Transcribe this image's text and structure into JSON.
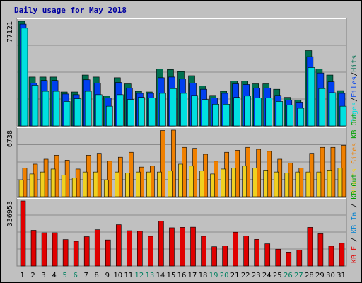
{
  "chart_data": {
    "type": "bar",
    "title": "Daily usage for May 2018",
    "x": [
      "1",
      "2",
      "3",
      "4",
      "5",
      "6",
      "7",
      "8",
      "9",
      "10",
      "11",
      "12",
      "13",
      "14",
      "15",
      "16",
      "17",
      "18",
      "19",
      "20",
      "21",
      "22",
      "23",
      "24",
      "25",
      "26",
      "27",
      "28",
      "29",
      "30",
      "31"
    ],
    "weekend_days": [
      "5",
      "6",
      "12",
      "13",
      "19",
      "20",
      "26",
      "27"
    ],
    "panels": [
      {
        "id": "hits",
        "max_label": "77121",
        "ymax": 77121,
        "legend": [
          "Pages",
          "/",
          "Files",
          "/",
          "Hits"
        ],
        "legend_colors": [
          "#00e0e0",
          "#000000",
          "#0040f0",
          "#000000",
          "#007050"
        ],
        "series": [
          {
            "name": "Hits",
            "color": "#007050",
            "values": [
              77121,
              36000,
              36000,
              36000,
              25000,
              25000,
              37500,
              36000,
              22000,
              35500,
              31000,
              25500,
              25000,
              42000,
              41500,
              40000,
              37000,
              29500,
              22500,
              25500,
              33000,
              33000,
              31000,
              31000,
              27000,
              21000,
              19000,
              55500,
              42000,
              37500,
              26000
            ]
          },
          {
            "name": "Files",
            "color": "#0040f0",
            "values": [
              75000,
              31500,
              33500,
              33500,
              23500,
              23000,
              34000,
              31500,
              20500,
              32000,
              28000,
              24000,
              24000,
              35500,
              36000,
              34500,
              31500,
              27000,
              20500,
              24000,
              31000,
              30500,
              28000,
              28000,
              22500,
              19000,
              17500,
              51000,
              39000,
              32500,
              24000
            ]
          },
          {
            "name": "Pages",
            "color": "#00e0e0",
            "values": [
              72000,
              30000,
              25500,
              25500,
              18000,
              20000,
              25500,
              23000,
              14500,
              23000,
              19500,
              21000,
              20500,
              24000,
              27500,
              24000,
              22500,
              19500,
              16000,
              16000,
              21000,
              22000,
              20500,
              20500,
              18000,
              15500,
              13000,
              43000,
              27500,
              24500,
              14500
            ]
          }
        ]
      },
      {
        "id": "visits",
        "max_label": "6738",
        "ymax": 6738,
        "legend": [
          "Visits",
          " ",
          "Sites",
          " ",
          "KB Out"
        ],
        "legend_colors": [
          "#f0d020",
          "#000000",
          "#f08000",
          "#000000",
          "#00a000"
        ],
        "series": [
          {
            "name": "Sites",
            "color": "#f08000",
            "values": [
              2900,
              3300,
              3800,
              4200,
              3700,
              2800,
              4200,
              4400,
              3600,
              4000,
              4500,
              3000,
              3100,
              6700,
              6738,
              5000,
              4900,
              4300,
              3600,
              4500,
              4700,
              5000,
              4800,
              4600,
              3800,
              3400,
              2900,
              4400,
              5000,
              5000,
              5200
            ]
          },
          {
            "name": "Visits",
            "color": "#f0d020",
            "values": [
              1700,
              2300,
              2500,
              2800,
              2200,
              1900,
              2500,
              2500,
              1700,
              2500,
              2400,
              2500,
              2500,
              2500,
              2600,
              3300,
              3100,
              2600,
              2300,
              2800,
              2900,
              3100,
              2900,
              2700,
              2500,
              2400,
              2500,
              2500,
              2500,
              2700,
              2900
            ]
          }
        ]
      },
      {
        "id": "kb",
        "max_label": "336953",
        "ymax": 336953,
        "legend": [
          "KB F",
          " / ",
          "KB In",
          " / ",
          "KB Out"
        ],
        "legend_colors": [
          "#e00000",
          "#000000",
          "#0080d0",
          "#000000",
          "#00a000"
        ],
        "series": [
          {
            "name": "KB F",
            "color": "#e00000",
            "values": [
              336953,
              185000,
              172000,
              172000,
              137000,
              128000,
              152000,
              188000,
              135000,
              214000,
              183000,
              180000,
              154000,
              232000,
              198000,
              200000,
              201000,
              154000,
              100000,
              104000,
              175000,
              156000,
              138000,
              115000,
              87000,
              72000,
              82000,
              200000,
              167000,
              103000,
              118000
            ]
          }
        ]
      }
    ]
  }
}
